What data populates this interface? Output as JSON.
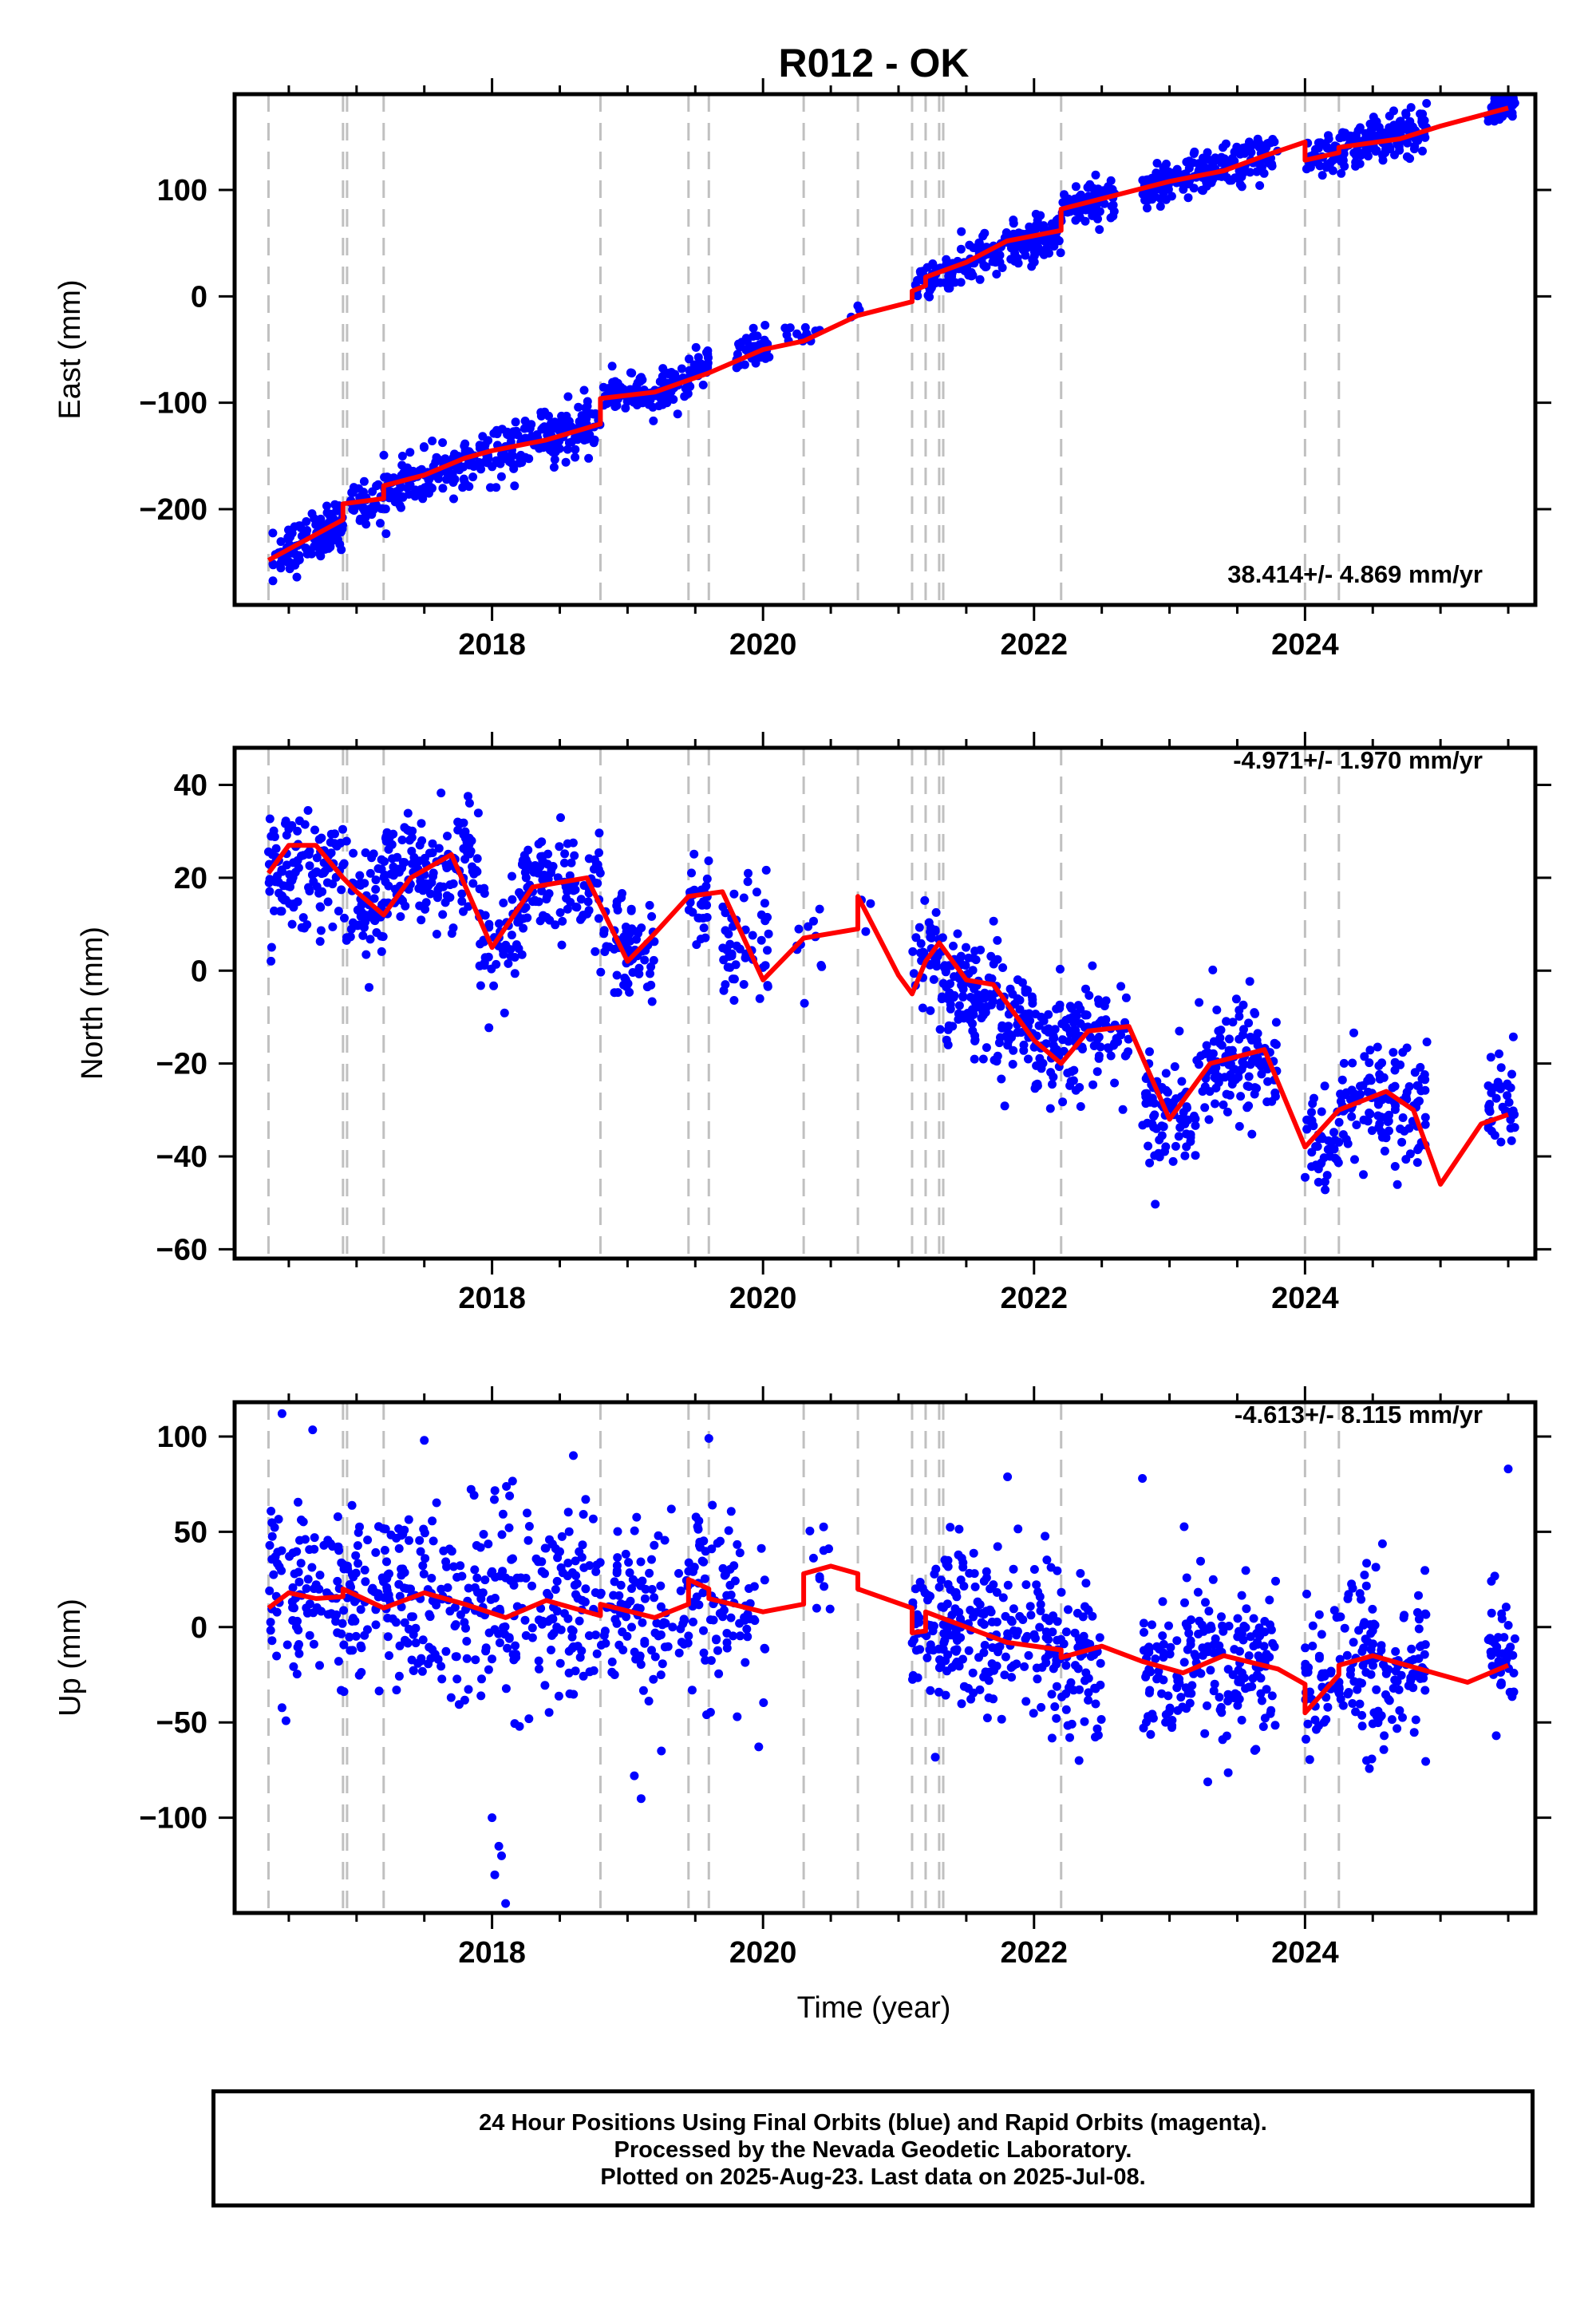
{
  "title": "R012 - OK",
  "xlabel": "Time (year)",
  "footer": [
    "24 Hour Positions Using Final Orbits (blue) and Rapid Orbits (magenta).",
    "Processed by the Nevada Geodetic Laboratory.",
    "Plotted on 2025-Aug-23. Last data on 2025-Jul-08."
  ],
  "colors": {
    "points": "#0000ff",
    "model": "#ff0000",
    "steps": "#c0c0c0"
  },
  "chart_data": [
    {
      "type": "scatter",
      "ylabel": "East (mm)",
      "rate_label": "38.414+/- 4.869 mm/yr",
      "xlim": [
        2016.1,
        2025.7
      ],
      "ylim": [
        -290,
        190
      ],
      "x_ticks": [
        2018,
        2020,
        2022,
        2024
      ],
      "y_ticks": [
        -200,
        -100,
        0,
        100
      ],
      "step_epochs": [
        2016.35,
        2016.9,
        2016.93,
        2017.2,
        2018.8,
        2019.45,
        2019.6,
        2020.3,
        2020.7,
        2021.1,
        2021.2,
        2021.3,
        2021.33,
        2022.2,
        2024.0,
        2024.25
      ],
      "model": {
        "x": [
          2016.35,
          2016.9,
          2016.9,
          2017.2,
          2017.2,
          2017.5,
          2017.8,
          2018.0,
          2018.4,
          2018.8,
          2018.8,
          2019.2,
          2019.6,
          2020.0,
          2020.3,
          2020.7,
          2021.1,
          2021.1,
          2021.2,
          2021.2,
          2021.5,
          2021.8,
          2022.2,
          2022.2,
          2022.6,
          2023.0,
          2023.4,
          2023.7,
          2024.0,
          2024.0,
          2024.25,
          2024.25,
          2024.7,
          2025.0,
          2025.5
        ],
        "y": [
          -248,
          -210,
          -195,
          -190,
          -178,
          -168,
          -152,
          -145,
          -135,
          -120,
          -96,
          -90,
          -72,
          -50,
          -42,
          -18,
          -5,
          5,
          10,
          18,
          32,
          52,
          62,
          82,
          95,
          108,
          118,
          132,
          145,
          128,
          135,
          140,
          148,
          160,
          177
        ]
      },
      "segments": [
        {
          "x0": 2016.38,
          "x1": 2016.9,
          "y0": -248,
          "y1": -210,
          "n": 110,
          "sd": 12
        },
        {
          "x0": 2016.95,
          "x1": 2017.2,
          "y0": -200,
          "y1": -190,
          "n": 40,
          "sd": 10
        },
        {
          "x0": 2017.2,
          "x1": 2018.8,
          "y0": -182,
          "y1": -118,
          "n": 300,
          "sd": 12
        },
        {
          "x0": 2018.82,
          "x1": 2019.45,
          "y0": -98,
          "y1": -82,
          "n": 110,
          "sd": 10
        },
        {
          "x0": 2019.45,
          "x1": 2019.6,
          "y0": -70,
          "y1": -62,
          "n": 30,
          "sd": 8
        },
        {
          "x0": 2019.8,
          "x1": 2020.05,
          "y0": -55,
          "y1": -45,
          "n": 50,
          "sd": 8
        },
        {
          "x0": 2020.15,
          "x1": 2020.45,
          "y0": -40,
          "y1": -35,
          "n": 14,
          "sd": 6
        },
        {
          "x0": 2020.65,
          "x1": 2020.72,
          "y0": -14,
          "y1": -10,
          "n": 3,
          "sd": 3
        },
        {
          "x0": 2021.12,
          "x1": 2021.3,
          "y0": 10,
          "y1": 20,
          "n": 30,
          "sd": 8
        },
        {
          "x0": 2021.3,
          "x1": 2022.2,
          "y0": 22,
          "y1": 62,
          "n": 180,
          "sd": 10
        },
        {
          "x0": 2022.2,
          "x1": 2022.6,
          "y0": 80,
          "y1": 96,
          "n": 80,
          "sd": 10
        },
        {
          "x0": 2022.8,
          "x1": 2023.8,
          "y0": 100,
          "y1": 135,
          "n": 200,
          "sd": 10
        },
        {
          "x0": 2024.0,
          "x1": 2024.25,
          "y0": 128,
          "y1": 132,
          "n": 40,
          "sd": 9
        },
        {
          "x0": 2024.25,
          "x1": 2024.9,
          "y0": 138,
          "y1": 160,
          "n": 140,
          "sd": 10
        },
        {
          "x0": 2025.35,
          "x1": 2025.55,
          "y0": 170,
          "y1": 178,
          "n": 40,
          "sd": 7
        }
      ]
    },
    {
      "type": "scatter",
      "ylabel": "North (mm)",
      "rate_label": "-4.971+/- 1.970 mm/yr",
      "xlim": [
        2016.1,
        2025.7
      ],
      "ylim": [
        -62,
        48
      ],
      "x_ticks": [
        2018,
        2020,
        2022,
        2024
      ],
      "y_ticks": [
        -60,
        -40,
        -20,
        0,
        20,
        40
      ],
      "step_epochs": [
        2016.35,
        2016.9,
        2016.93,
        2017.2,
        2018.8,
        2019.45,
        2019.6,
        2020.3,
        2020.7,
        2021.1,
        2021.2,
        2021.3,
        2021.33,
        2022.2,
        2024.0,
        2024.25
      ],
      "model": {
        "x": [
          2016.35,
          2016.5,
          2016.7,
          2016.9,
          2017.0,
          2017.2,
          2017.4,
          2017.7,
          2018.0,
          2018.3,
          2018.7,
          2019.0,
          2019.2,
          2019.45,
          2019.7,
          2020.0,
          2020.3,
          2020.7,
          2020.7,
          2021.0,
          2021.1,
          2021.2,
          2021.3,
          2021.5,
          2021.7,
          2022.0,
          2022.2,
          2022.4,
          2022.7,
          2023.0,
          2023.3,
          2023.7,
          2024.0,
          2024.25,
          2024.6,
          2024.8,
          2025.0,
          2025.3,
          2025.5
        ],
        "y": [
          21,
          27,
          27,
          20,
          17,
          12,
          20,
          25,
          5,
          18,
          20,
          2,
          8,
          16,
          17,
          -2,
          7,
          9,
          16,
          -1,
          -5,
          2,
          6,
          -2,
          -3,
          -15,
          -20,
          -13,
          -12,
          -32,
          -20,
          -17,
          -38,
          -30,
          -26,
          -30,
          -46,
          -33,
          -31
        ]
      },
      "segments": [
        {
          "x0": 2016.35,
          "x1": 2016.9,
          "y0": 22,
          "y1": 22,
          "n": 120,
          "sd": 6
        },
        {
          "x0": 2016.9,
          "x1": 2017.2,
          "y0": 14,
          "y1": 14,
          "n": 60,
          "sd": 6
        },
        {
          "x0": 2017.2,
          "x1": 2017.9,
          "y0": 22,
          "y1": 22,
          "n": 150,
          "sd": 6
        },
        {
          "x0": 2017.9,
          "x1": 2018.2,
          "y0": 5,
          "y1": 5,
          "n": 50,
          "sd": 7
        },
        {
          "x0": 2018.2,
          "x1": 2018.8,
          "y0": 18,
          "y1": 18,
          "n": 120,
          "sd": 6
        },
        {
          "x0": 2018.8,
          "x1": 2019.2,
          "y0": 4,
          "y1": 4,
          "n": 70,
          "sd": 6
        },
        {
          "x0": 2019.45,
          "x1": 2019.6,
          "y0": 16,
          "y1": 16,
          "n": 30,
          "sd": 6
        },
        {
          "x0": 2019.7,
          "x1": 2020.05,
          "y0": 4,
          "y1": 4,
          "n": 50,
          "sd": 7
        },
        {
          "x0": 2020.2,
          "x1": 2020.45,
          "y0": 5,
          "y1": 5,
          "n": 12,
          "sd": 4
        },
        {
          "x0": 2020.7,
          "x1": 2020.8,
          "y0": 14,
          "y1": 14,
          "n": 3,
          "sd": 3
        },
        {
          "x0": 2021.1,
          "x1": 2021.3,
          "y0": 2,
          "y1": 2,
          "n": 35,
          "sd": 5
        },
        {
          "x0": 2021.3,
          "x1": 2022.0,
          "y0": -3,
          "y1": -12,
          "n": 170,
          "sd": 6
        },
        {
          "x0": 2022.0,
          "x1": 2022.7,
          "y0": -14,
          "y1": -14,
          "n": 130,
          "sd": 6
        },
        {
          "x0": 2022.8,
          "x1": 2023.2,
          "y0": -30,
          "y1": -30,
          "n": 80,
          "sd": 6
        },
        {
          "x0": 2023.2,
          "x1": 2023.8,
          "y0": -19,
          "y1": -19,
          "n": 120,
          "sd": 7
        },
        {
          "x0": 2024.0,
          "x1": 2024.25,
          "y0": -38,
          "y1": -38,
          "n": 45,
          "sd": 5
        },
        {
          "x0": 2024.25,
          "x1": 2024.9,
          "y0": -28,
          "y1": -28,
          "n": 120,
          "sd": 6
        },
        {
          "x0": 2025.35,
          "x1": 2025.55,
          "y0": -30,
          "y1": -30,
          "n": 40,
          "sd": 6
        }
      ]
    },
    {
      "type": "scatter",
      "ylabel": "Up (mm)",
      "rate_label": "-4.613+/- 8.115 mm/yr",
      "xlim": [
        2016.1,
        2025.7
      ],
      "ylim": [
        -150,
        118
      ],
      "x_ticks": [
        2018,
        2020,
        2022,
        2024
      ],
      "y_ticks": [
        -100,
        -50,
        0,
        50,
        100
      ],
      "step_epochs": [
        2016.35,
        2016.9,
        2016.93,
        2017.2,
        2018.8,
        2019.45,
        2019.6,
        2020.3,
        2020.7,
        2021.1,
        2021.2,
        2021.3,
        2021.33,
        2022.2,
        2024.0,
        2024.25
      ],
      "model": {
        "x": [
          2016.35,
          2016.5,
          2016.7,
          2016.9,
          2016.9,
          2017.2,
          2017.5,
          2017.8,
          2018.1,
          2018.4,
          2018.8,
          2018.8,
          2019.2,
          2019.45,
          2019.45,
          2019.6,
          2019.6,
          2020.0,
          2020.3,
          2020.3,
          2020.5,
          2020.7,
          2020.7,
          2021.1,
          2021.1,
          2021.2,
          2021.2,
          2021.5,
          2021.8,
          2022.2,
          2022.2,
          2022.5,
          2022.8,
          2023.1,
          2023.4,
          2023.8,
          2024.0,
          2024.0,
          2024.25,
          2024.25,
          2024.5,
          2025.0,
          2025.2,
          2025.5
        ],
        "y": [
          10,
          18,
          15,
          16,
          20,
          10,
          18,
          12,
          5,
          14,
          6,
          12,
          5,
          12,
          25,
          20,
          15,
          8,
          12,
          28,
          32,
          28,
          20,
          10,
          -3,
          -2,
          8,
          0,
          -8,
          -12,
          -16,
          -10,
          -18,
          -24,
          -15,
          -22,
          -30,
          -45,
          -25,
          -20,
          -15,
          -25,
          -29,
          -20
        ]
      },
      "segments": [
        {
          "x0": 2016.35,
          "x1": 2016.9,
          "y0": 18,
          "y1": 18,
          "n": 100,
          "sd": 24
        },
        {
          "x0": 2016.9,
          "x1": 2017.2,
          "y0": 14,
          "y1": 14,
          "n": 55,
          "sd": 22
        },
        {
          "x0": 2017.2,
          "x1": 2018.8,
          "y0": 12,
          "y1": 12,
          "n": 300,
          "sd": 26
        },
        {
          "x0": 2018.8,
          "x1": 2019.45,
          "y0": 8,
          "y1": 8,
          "n": 100,
          "sd": 24
        },
        {
          "x0": 2019.45,
          "x1": 2019.6,
          "y0": 22,
          "y1": 22,
          "n": 30,
          "sd": 22
        },
        {
          "x0": 2019.6,
          "x1": 2020.05,
          "y0": 10,
          "y1": 10,
          "n": 60,
          "sd": 24
        },
        {
          "x0": 2020.3,
          "x1": 2020.5,
          "y0": 30,
          "y1": 30,
          "n": 10,
          "sd": 15
        },
        {
          "x0": 2021.1,
          "x1": 2022.2,
          "y0": 2,
          "y1": -8,
          "n": 230,
          "sd": 22
        },
        {
          "x0": 2022.2,
          "x1": 2022.5,
          "y0": -18,
          "y1": -18,
          "n": 60,
          "sd": 22
        },
        {
          "x0": 2022.8,
          "x1": 2023.8,
          "y0": -20,
          "y1": -20,
          "n": 200,
          "sd": 22
        },
        {
          "x0": 2024.0,
          "x1": 2024.9,
          "y0": -25,
          "y1": -20,
          "n": 180,
          "sd": 22
        },
        {
          "x0": 2025.35,
          "x1": 2025.55,
          "y0": -15,
          "y1": -15,
          "n": 40,
          "sd": 20
        }
      ],
      "outliers": {
        "x": [
          2016.45,
          2018.0,
          2018.05,
          2018.02,
          2018.07,
          2018.1,
          2019.05,
          2019.1,
          2019.6,
          2025.5,
          2017.5,
          2018.6,
          2022.8,
          2019.25
        ],
        "y": [
          112,
          -100,
          -115,
          -130,
          -120,
          -145,
          -78,
          -90,
          99,
          83,
          98,
          90,
          78,
          -65
        ]
      }
    }
  ]
}
